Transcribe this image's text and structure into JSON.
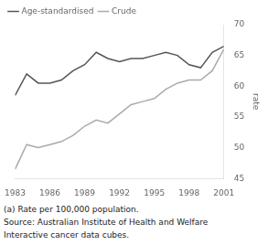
{
  "chart_data": {
    "type": "line",
    "x": [
      1983,
      1984,
      1985,
      1986,
      1987,
      1988,
      1989,
      1990,
      1991,
      1992,
      1993,
      1994,
      1995,
      1996,
      1997,
      1998,
      1999,
      2000,
      2001
    ],
    "series": [
      {
        "name": "Age-standardised",
        "color": "#555555",
        "values": [
          58.5,
          62.0,
          60.5,
          60.5,
          61.0,
          62.5,
          63.5,
          65.5,
          64.5,
          64.0,
          64.5,
          64.5,
          65.0,
          65.5,
          65.0,
          63.5,
          63.0,
          65.5,
          66.5
        ]
      },
      {
        "name": "Crude",
        "color": "#aaaaaa",
        "values": [
          46.5,
          50.5,
          50.0,
          50.5,
          51.0,
          52.0,
          53.5,
          54.5,
          54.0,
          55.5,
          57.0,
          57.5,
          58.0,
          59.5,
          60.5,
          61.0,
          61.0,
          62.5,
          66.0
        ]
      }
    ],
    "xlim": [
      1983,
      2001
    ],
    "xticks": [
      1983,
      1986,
      1989,
      1992,
      1995,
      1998,
      2001
    ],
    "ylim": [
      45,
      70
    ],
    "yticks": [
      45,
      50,
      55,
      60,
      65,
      70
    ],
    "ylabel": "rate",
    "legend": "upper left",
    "grid": false,
    "annotations": [
      "(a) Rate per 100,000 population.",
      "Source: Australian Institute of Health and Welfare",
      "Interactive cancer data cubes."
    ]
  }
}
